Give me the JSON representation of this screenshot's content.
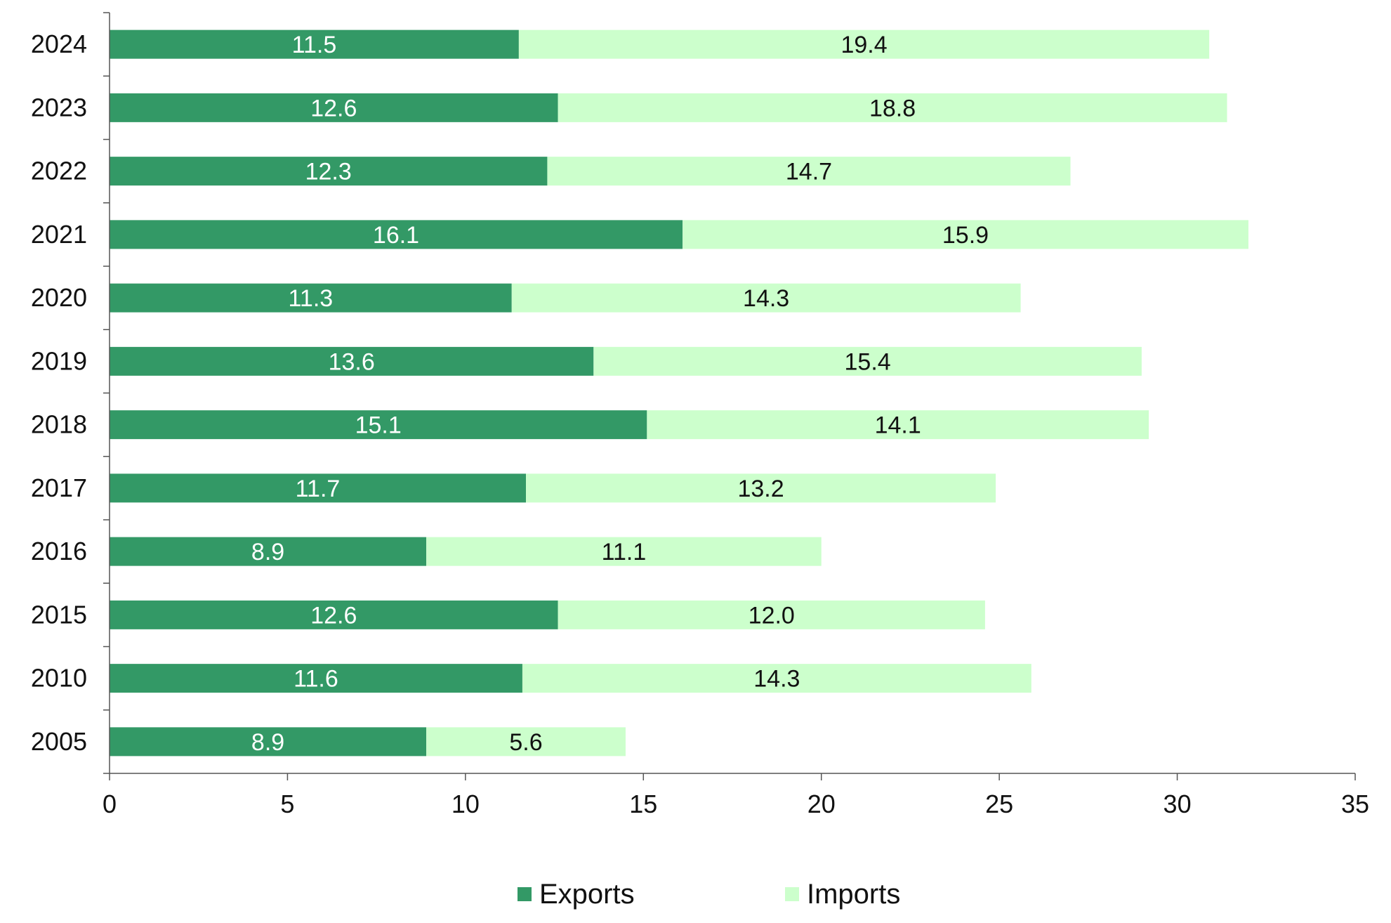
{
  "chart_data": {
    "type": "bar",
    "orientation": "horizontal",
    "stacked": true,
    "categories": [
      "2024",
      "2023",
      "2022",
      "2021",
      "2020",
      "2019",
      "2018",
      "2017",
      "2016",
      "2015",
      "2010",
      "2005"
    ],
    "series": [
      {
        "name": "Exports",
        "color": "#339966",
        "label_color": "#ffffff",
        "values": [
          11.5,
          12.6,
          12.3,
          16.1,
          11.3,
          13.6,
          15.1,
          11.7,
          8.9,
          12.6,
          11.6,
          8.9
        ],
        "labels": [
          "11.5",
          "12.6",
          "12.3",
          "16.1",
          "11.3",
          "13.6",
          "15.1",
          "11.7",
          "8.9",
          "12.6",
          "11.6",
          "8.9"
        ]
      },
      {
        "name": "Imports",
        "color": "#ccffcc",
        "label_color": "#111111",
        "values": [
          19.4,
          18.8,
          14.7,
          15.9,
          14.3,
          15.4,
          14.1,
          13.2,
          11.1,
          12.0,
          14.3,
          5.6
        ],
        "labels": [
          "19.4",
          "18.8",
          "14.7",
          "15.9",
          "14.3",
          "15.4",
          "14.1",
          "13.2",
          "11.1",
          "12.0",
          "14.3",
          "5.6"
        ]
      }
    ],
    "xlim": [
      0,
      35
    ],
    "x_ticks": [
      "0",
      "5",
      "10",
      "15",
      "20",
      "25",
      "30",
      "35"
    ],
    "title": "",
    "xlabel": "",
    "ylabel": "",
    "grid": false,
    "legend": "bottom-center"
  }
}
